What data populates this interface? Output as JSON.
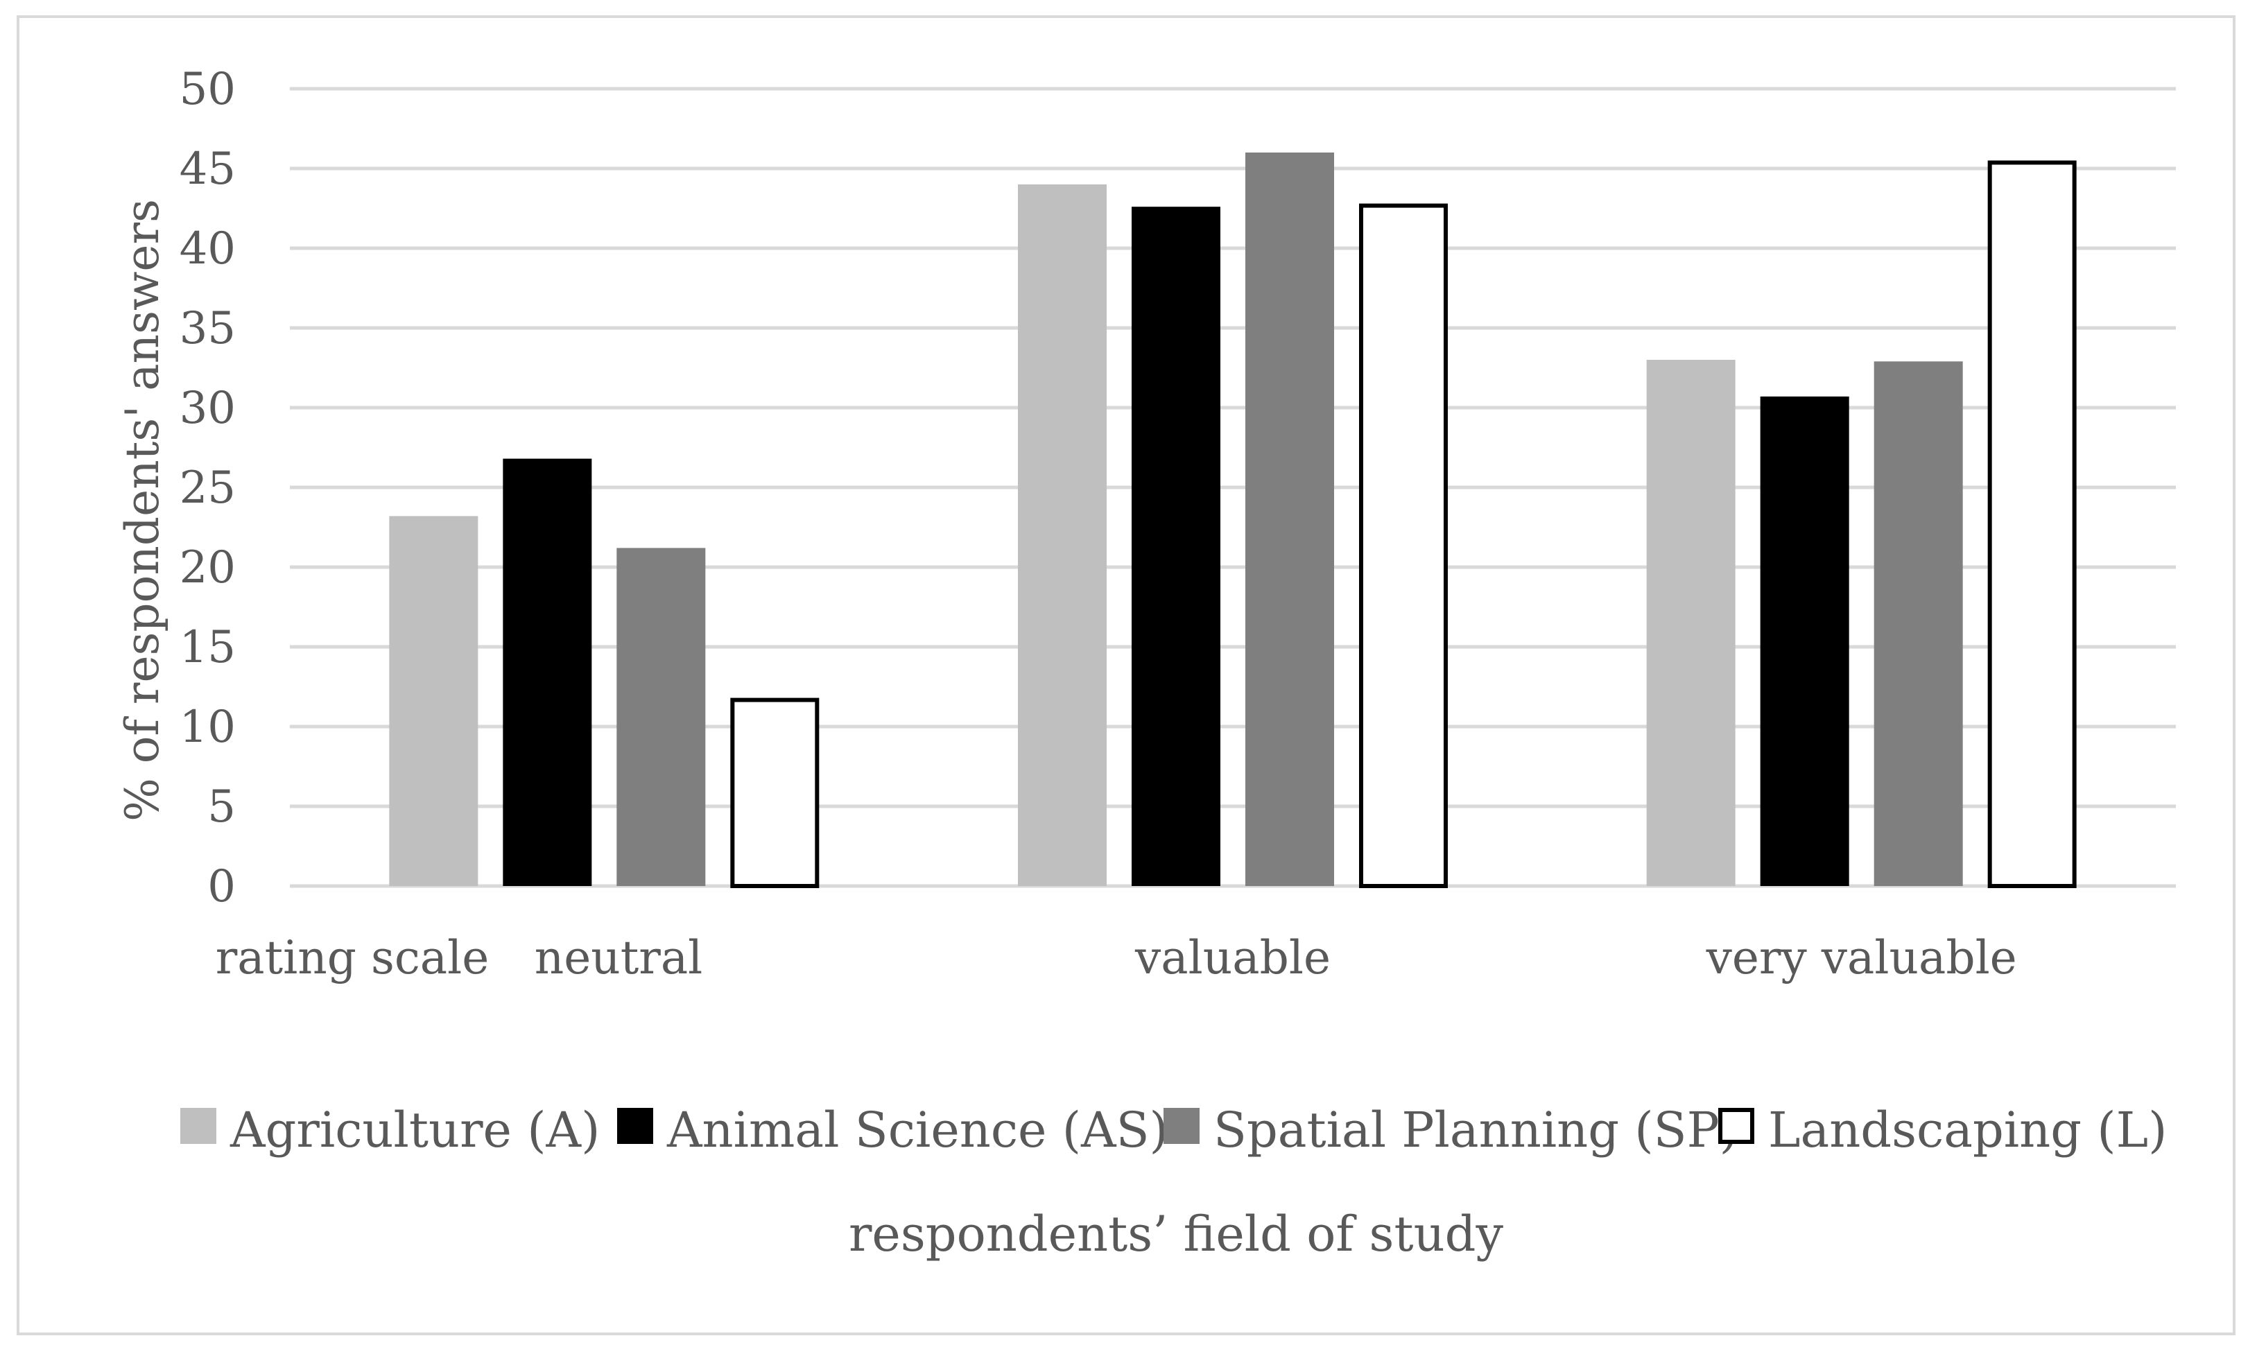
{
  "chart_data": {
    "type": "bar",
    "title": "",
    "xlabel": "respondents’ field of study",
    "ylabel": "% of respondents' answers",
    "axis_prefix_label": "rating scale",
    "categories": [
      "neutral",
      "valuable",
      "very valuable"
    ],
    "series": [
      {
        "name": "Agriculture (A)",
        "values": [
          23.2,
          44.0,
          33.0
        ],
        "color": "#bfbfbf",
        "outline": ""
      },
      {
        "name": "Animal Science (AS)",
        "values": [
          26.8,
          42.6,
          30.7
        ],
        "color": "#000000",
        "outline": ""
      },
      {
        "name": "Spatial Planning (SP)",
        "values": [
          21.2,
          46.0,
          32.9
        ],
        "color": "#7f7f7f",
        "outline": ""
      },
      {
        "name": "Landscaping (L)",
        "values": [
          11.8,
          42.8,
          45.5
        ],
        "color": "#ffffff",
        "outline": "#000000"
      }
    ],
    "ylim": [
      0,
      50
    ],
    "yticks": [
      0,
      5,
      10,
      15,
      20,
      25,
      30,
      35,
      40,
      45,
      50
    ],
    "grid": true,
    "gridline_color": "#d9d9d9",
    "legend_position": "bottom"
  }
}
